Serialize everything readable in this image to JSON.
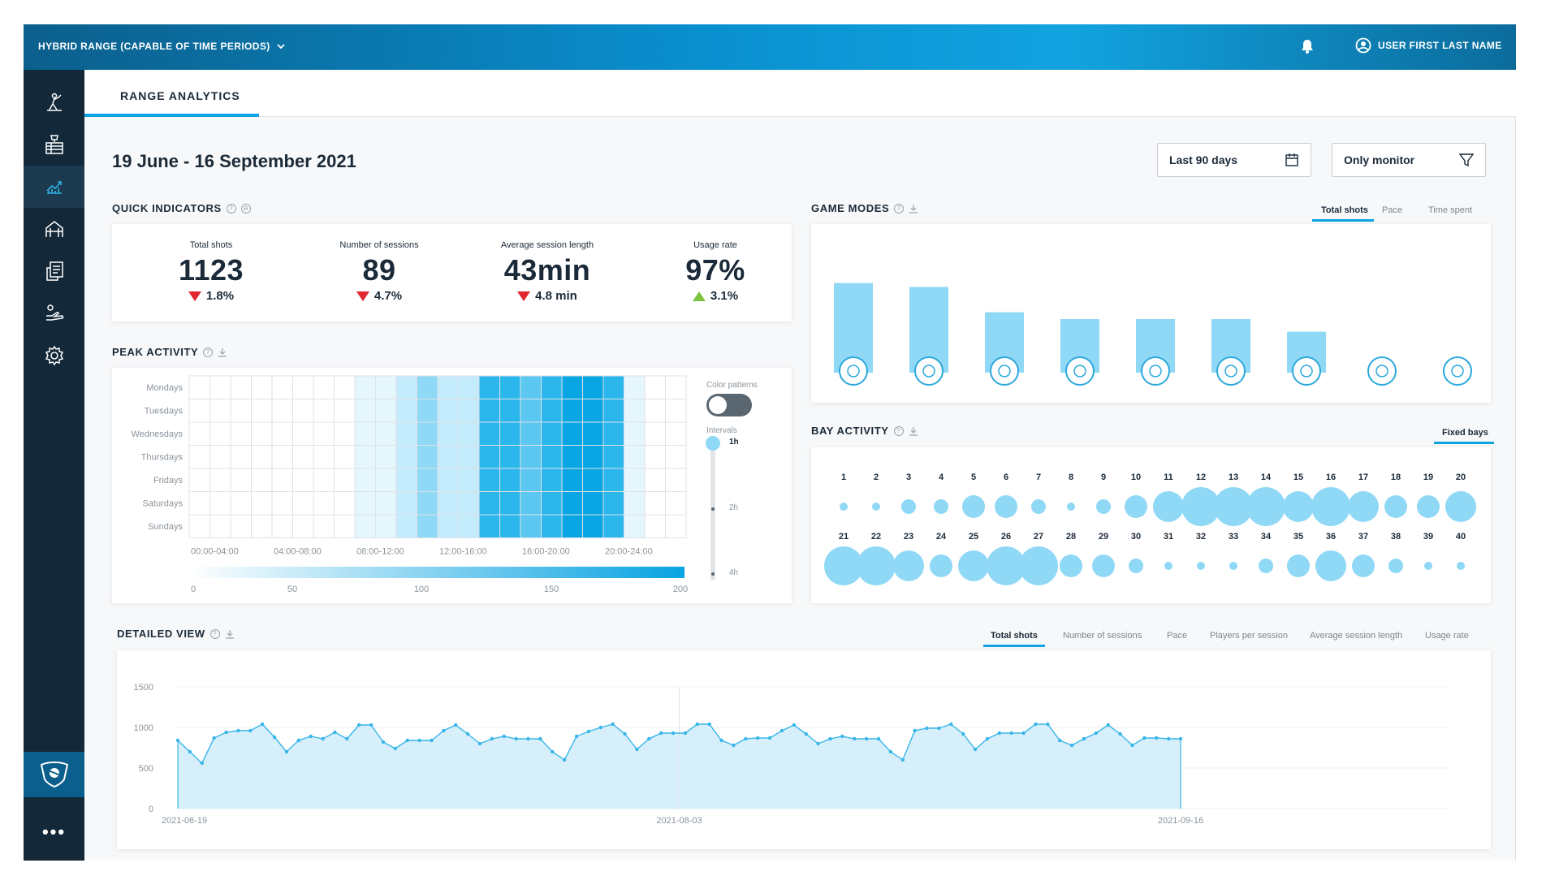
{
  "topbar": {
    "site_name": "HYBRID RANGE (CAPABLE OF TIME PERIODS)",
    "user_name": "USER FIRST LAST NAME"
  },
  "sidebar": {
    "items": [
      {
        "icon": "golfer-icon"
      },
      {
        "icon": "trophy-table-icon"
      },
      {
        "icon": "analytics-icon",
        "active": true
      },
      {
        "icon": "range-structure-icon"
      },
      {
        "icon": "reports-icon"
      },
      {
        "icon": "hand-ball-icon"
      },
      {
        "icon": "gear-icon"
      }
    ],
    "more_label": "•••"
  },
  "tabs": {
    "active": "RANGE ANALYTICS"
  },
  "header": {
    "date_range": "19 June - 16 September 2021",
    "period_select": "Last 90 days",
    "filter_select": "Only monitor"
  },
  "quick_indicators": {
    "title": "QUICK INDICATORS",
    "items": [
      {
        "label": "Total shots",
        "value": "1123",
        "change": "1.8%",
        "direction": "down"
      },
      {
        "label": "Number of sessions",
        "value": "89",
        "change": "4.7%",
        "direction": "down"
      },
      {
        "label": "Average session length",
        "value": "43min",
        "change": "4.8 min",
        "direction": "down"
      },
      {
        "label": "Usage rate",
        "value": "97%",
        "change": "3.1%",
        "direction": "up"
      }
    ]
  },
  "game_modes": {
    "title": "GAME MODES",
    "tabs": [
      "Total shots",
      "Pace",
      "Time spent"
    ],
    "active_tab": "Total shots",
    "bar_levels": [
      0.92,
      0.88,
      0.62,
      0.55,
      0.55,
      0.55,
      0.42,
      0.0,
      0.0
    ],
    "mode_icons": [
      "balls-icon",
      "bag-icon",
      "target-green-icon",
      "fairway-icon",
      "island-green-icon",
      "pin-green-icon",
      "flag-target-icon",
      "no-entry-icon",
      "wifi-pin-icon"
    ]
  },
  "peak_activity": {
    "title": "PEAK ACTIVITY",
    "days": [
      "Mondays",
      "Tuesdays",
      "Wednesdays",
      "Thursdays",
      "Fridays",
      "Saturdays",
      "Sundays"
    ],
    "time_labels": [
      "00:00-04:00",
      "04:00-08:00",
      "08:00-12:00",
      "12:00-16:00",
      "16:00-20:00",
      "20:00-24:00"
    ],
    "hourly_levels": [
      0,
      0,
      0,
      0,
      0,
      0,
      0,
      0,
      1,
      1,
      2,
      3,
      2,
      2,
      5,
      5,
      4,
      5,
      6,
      6,
      5,
      1,
      0,
      0
    ],
    "scale_labels": [
      "0",
      "50",
      "100",
      "150",
      "200"
    ],
    "color_patterns_label": "Color patterns",
    "intervals_label": "Intervals",
    "interval_options": [
      "1h",
      "2h",
      "4h"
    ],
    "selected_interval": "1h"
  },
  "bay_activity": {
    "title": "BAY ACTIVITY",
    "tab": "Fixed bays",
    "bays": [
      {
        "n": "1",
        "s": 1
      },
      {
        "n": "2",
        "s": 1
      },
      {
        "n": "3",
        "s": 2
      },
      {
        "n": "4",
        "s": 2
      },
      {
        "n": "5",
        "s": 3
      },
      {
        "n": "6",
        "s": 3
      },
      {
        "n": "7",
        "s": 2
      },
      {
        "n": "8",
        "s": 1
      },
      {
        "n": "9",
        "s": 2
      },
      {
        "n": "10",
        "s": 3
      },
      {
        "n": "11",
        "s": 4
      },
      {
        "n": "12",
        "s": 5
      },
      {
        "n": "13",
        "s": 5
      },
      {
        "n": "14",
        "s": 5
      },
      {
        "n": "15",
        "s": 4
      },
      {
        "n": "16",
        "s": 5
      },
      {
        "n": "17",
        "s": 4
      },
      {
        "n": "18",
        "s": 3
      },
      {
        "n": "19",
        "s": 3
      },
      {
        "n": "20",
        "s": 4
      },
      {
        "n": "21",
        "s": 5
      },
      {
        "n": "22",
        "s": 5
      },
      {
        "n": "23",
        "s": 4
      },
      {
        "n": "24",
        "s": 3
      },
      {
        "n": "25",
        "s": 4
      },
      {
        "n": "26",
        "s": 5
      },
      {
        "n": "27",
        "s": 5
      },
      {
        "n": "28",
        "s": 3
      },
      {
        "n": "29",
        "s": 3
      },
      {
        "n": "30",
        "s": 2
      },
      {
        "n": "31",
        "s": 1
      },
      {
        "n": "32",
        "s": 1
      },
      {
        "n": "33",
        "s": 1
      },
      {
        "n": "34",
        "s": 2
      },
      {
        "n": "35",
        "s": 3
      },
      {
        "n": "36",
        "s": 4
      },
      {
        "n": "37",
        "s": 3
      },
      {
        "n": "38",
        "s": 2
      },
      {
        "n": "39",
        "s": 1
      },
      {
        "n": "40",
        "s": 1
      }
    ]
  },
  "detailed_view": {
    "title": "DETAILED VIEW",
    "tabs": [
      "Total shots",
      "Number of sessions",
      "Pace",
      "Players per session",
      "Average session length",
      "Usage rate"
    ],
    "active_tab": "Total shots",
    "y_ticks": [
      "1500",
      "1000",
      "500",
      "0"
    ],
    "x_ticks": [
      "2021-06-19",
      "2021-08-03",
      "2021-09-16"
    ]
  },
  "chart_data": {
    "type": "area",
    "x_start": "2021-06-19",
    "x_end": "2021-09-16",
    "xlabel": "",
    "ylabel": "",
    "ylim": [
      0,
      1500
    ],
    "values": [
      840,
      700,
      560,
      870,
      940,
      960,
      960,
      1040,
      880,
      700,
      840,
      890,
      860,
      940,
      860,
      1030,
      1030,
      820,
      740,
      840,
      840,
      840,
      960,
      1030,
      920,
      800,
      860,
      890,
      860,
      860,
      860,
      700,
      600,
      890,
      950,
      1000,
      1040,
      920,
      730,
      860,
      930,
      930,
      930,
      1040,
      1040,
      840,
      780,
      860,
      870,
      870,
      960,
      1030,
      920,
      800,
      860,
      890,
      860,
      860,
      860,
      700,
      600,
      960,
      990,
      990,
      1040,
      920,
      730,
      860,
      930,
      930,
      930,
      1040,
      1040,
      840,
      780,
      860,
      930,
      1030,
      920,
      780,
      870,
      870,
      860,
      860
    ],
    "color": "#38b6e8"
  }
}
